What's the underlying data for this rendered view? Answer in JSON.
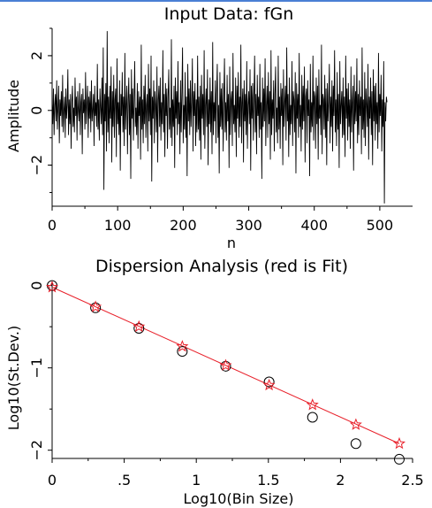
{
  "chart_data": [
    {
      "type": "line",
      "title": "Input Data: fGn",
      "xlabel": "n",
      "ylabel": "Amplitude",
      "xlim": [
        0,
        550
      ],
      "ylim": [
        -3.5,
        3.0
      ],
      "xticks": [
        "0",
        "100",
        "200",
        "300",
        "400",
        "500"
      ],
      "yticks": [
        "2",
        "0",
        "−2"
      ],
      "n_points": 512,
      "series": [
        {
          "color": "#000000",
          "values": [
            0.3,
            -0.5,
            0.8,
            -0.9,
            0.2,
            0.6,
            -0.4,
            1.1,
            -0.7,
            0.1,
            0.9,
            -1.2,
            0.4,
            -0.2,
            0.7,
            -0.6,
            1.3,
            -0.8,
            0.0,
            0.5,
            -1.0,
            0.8,
            -0.3,
            0.2,
            1.5,
            -0.9,
            0.4,
            -0.5,
            0.6,
            -1.4,
            0.3,
            0.9,
            -0.6,
            0.1,
            -0.8,
            1.2,
            -0.2,
            0.5,
            -1.1,
            0.7,
            0.0,
            -0.4,
            1.0,
            -0.9,
            0.3,
            0.6,
            -1.6,
            0.8,
            -0.1,
            0.4,
            -0.7,
            1.4,
            -0.5,
            0.2,
            0.9,
            -1.0,
            0.5,
            -0.3,
            0.7,
            -0.8,
            1.1,
            -0.4,
            0.0,
            0.6,
            -1.3,
            0.9,
            -0.2,
            0.3,
            -0.6,
            1.7,
            -0.7,
            0.4,
            -1.1,
            0.8,
            0.1,
            -0.5,
            1.2,
            -0.9,
            2.3,
            -2.9,
            0.6,
            -0.4,
            1.0,
            -1.5,
            2.9,
            -0.8,
            0.5,
            -1.2,
            0.9,
            -0.3,
            1.6,
            -1.9,
            0.7,
            -0.6,
            1.3,
            -1.0,
            0.4,
            0.8,
            -1.7,
            1.9,
            -0.5,
            0.3,
            -0.9,
            1.1,
            -2.2,
            0.6,
            -0.2,
            1.4,
            -0.8,
            0.5,
            -1.3,
            2.1,
            -0.7,
            0.2,
            0.9,
            -1.6,
            0.4,
            1.2,
            -0.9,
            0.6,
            -2.5,
            1.5,
            -0.3,
            0.8,
            -1.1,
            0.3,
            1.8,
            -0.6,
            0.1,
            -0.9,
            1.0,
            -1.4,
            0.7,
            -0.2,
            0.5,
            -1.8,
            2.4,
            -0.7,
            0.4,
            -1.2,
            0.9,
            -0.5,
            1.3,
            -1.0,
            0.2,
            0.6,
            -1.5,
            1.7,
            -0.4,
            0.8,
            -0.9,
            2.0,
            -2.6,
            0.5,
            -0.3,
            1.1,
            -1.2,
            0.7,
            0.2,
            -0.8,
            1.6,
            -1.9,
            0.4,
            0.9,
            -0.6,
            1.2,
            -1.1,
            0.3,
            -0.5,
            2.2,
            -0.8,
            0.6,
            -1.7,
            1.0,
            -0.2,
            0.8,
            -1.4,
            0.5,
            1.5,
            -0.7,
            0.1,
            -1.0,
            2.6,
            -1.3,
            0.4,
            -0.6,
            0.9,
            -2.1,
            1.2,
            -0.3,
            0.7,
            -0.9,
            1.8,
            -0.5,
            0.3,
            -1.6,
            1.1,
            -0.8,
            0.6,
            2.3,
            -1.2,
            0.2,
            -0.7,
            1.4,
            -1.0,
            0.5,
            -2.4,
            1.7,
            -0.4,
            0.8,
            -0.9,
            1.1,
            -0.6,
            0.3,
            1.9,
            -1.5,
            0.7,
            -0.2,
            1.0,
            -1.3,
            0.4,
            -0.8,
            2.0,
            -0.7,
            0.5,
            -1.1,
            0.9,
            -1.8,
            1.3,
            -0.3,
            0.6,
            -0.9,
            2.2,
            -1.4,
            0.2,
            0.8,
            -0.6,
            1.5,
            -2.0,
            0.4,
            -0.5,
            1.2,
            -0.8,
            0.7,
            -1.6,
            2.5,
            -0.9,
            0.3,
            -0.4,
            1.1,
            -1.2,
            0.6,
            1.7,
            -1.0,
            0.2,
            -2.3,
            1.4,
            -0.6,
            0.8,
            -0.7,
            1.0,
            -1.5,
            0.5,
            1.9,
            -0.8,
            0.3,
            -1.1,
            1.3,
            -0.4,
            0.6,
            -2.1,
            1.6,
            -0.9,
            0.4,
            0.7,
            -1.3,
            2.1,
            -0.5,
            0.2,
            -0.8,
            1.2,
            -1.7,
            0.9,
            -0.3,
            1.4,
            -1.0,
            0.5,
            -0.6,
            2.4,
            -1.2,
            0.3,
            0.8,
            -1.9,
            1.1,
            -0.4,
            0.6,
            -0.9,
            1.8,
            -1.4,
            0.2,
            0.7,
            -0.5,
            1.5,
            -2.2,
            0.9,
            -0.3,
            1.0,
            -1.1,
            0.4,
            2.0,
            -0.8,
            0.6,
            -1.6,
            1.3,
            -0.2,
            0.5,
            -1.0,
            1.7,
            -0.7,
            0.3,
            -2.5,
            1.2,
            -0.6,
            0.8,
            -0.4,
            1.9,
            -1.3,
            0.2,
            0.9,
            -1.0,
            1.4,
            -0.5,
            0.7,
            -1.8,
            2.2,
            -0.9,
            0.4,
            -0.3,
            1.1,
            -1.5,
            0.6,
            1.6,
            -0.8,
            0.1,
            -1.2,
            2.0,
            -0.7,
            0.5,
            -1.4,
            1.0,
            -0.2,
            0.8,
            -2.0,
            1.5,
            -0.6,
            0.3,
            0.9,
            -1.1,
            2.3,
            -0.4,
            0.6,
            -1.7,
            1.2,
            -0.9,
            0.2,
            -0.5,
            1.8,
            -1.3,
            0.7,
            0.4,
            -0.8,
            1.4,
            -2.3,
            1.0,
            -0.3,
            0.6,
            -1.0,
            2.1,
            -0.6,
            0.2,
            -1.5,
            1.3,
            -0.7,
            0.9,
            -0.4,
            1.6,
            -1.9,
            0.5,
            0.8,
            -1.2,
            1.1,
            -0.2,
            0.4,
            -2.4,
            1.7,
            -0.8,
            0.3,
            -0.6,
            2.0,
            -1.1,
            0.7,
            0.5,
            -1.4,
            1.2,
            -0.5,
            0.9,
            -1.8,
            1.5,
            -0.3,
            0.2,
            -0.9,
            2.4,
            -1.6,
            0.6,
            0.4,
            -0.7,
            1.3,
            -1.0,
            0.8,
            -2.0,
            1.0,
            -0.4,
            0.3,
            1.7,
            -1.2,
            0.5,
            -0.6,
            1.1,
            -1.5,
            0.9,
            -0.2,
            2.2,
            -0.8,
            0.4,
            -1.3,
            1.4,
            -0.7,
            0.6,
            -2.1,
            1.8,
            -0.5,
            0.2,
            0.7,
            -1.0,
            1.2,
            -0.9,
            0.5,
            -1.7,
            2.0,
            -0.3,
            0.8,
            -1.1,
            1.0,
            -0.6,
            0.4,
            -1.4,
            1.6,
            -0.8,
            0.3,
            0.9,
            -2.2,
            1.3,
            -0.5,
            0.7,
            -0.4,
            1.9,
            -1.2,
            0.6,
            -0.9,
            1.1,
            -0.2,
            0.5,
            -1.6,
            2.3,
            -0.7,
            0.4,
            -1.0,
            1.4,
            -1.3,
            0.8,
            0.2,
            -0.6,
            1.7,
            -1.8,
            0.5,
            -0.3,
            1.2,
            -0.9,
            0.7,
            -2.0,
            1.5,
            -0.4,
            0.9,
            -1.1,
            1.0,
            -0.5,
            0.3,
            -1.4,
            2.1,
            -0.8,
            0.6,
            -0.2,
            1.3,
            -1.5,
            0.4,
            -0.6,
            1.8,
            -3.4,
            0.3,
            -0.4,
            0.5
          ]
        }
      ]
    },
    {
      "type": "scatter",
      "title": "Dispersion Analysis (red is Fit)",
      "xlabel": "Log10(Bin Size)",
      "ylabel": "Log10(St.Dev.)",
      "xlim": [
        0,
        2.5
      ],
      "ylim": [
        -2.1,
        0.05
      ],
      "xticks": [
        "0",
        ".5",
        "1",
        "1.5",
        "2",
        "2.5"
      ],
      "yticks": [
        "0",
        "−1",
        "−2"
      ],
      "series": [
        {
          "marker": "circle",
          "color": "#000000",
          "points": [
            [
              0.0,
              0.0
            ],
            [
              0.301,
              -0.27
            ],
            [
              0.602,
              -0.52
            ],
            [
              0.903,
              -0.8
            ],
            [
              1.204,
              -0.98
            ],
            [
              1.505,
              -1.17
            ],
            [
              1.806,
              -1.6
            ],
            [
              2.107,
              -1.92
            ],
            [
              2.408,
              -2.11
            ]
          ]
        },
        {
          "marker": "star",
          "color": "#e8202a",
          "points": [
            [
              0.0,
              -0.02
            ],
            [
              0.301,
              -0.26
            ],
            [
              0.602,
              -0.5
            ],
            [
              0.903,
              -0.74
            ],
            [
              1.204,
              -0.97
            ],
            [
              1.505,
              -1.21
            ],
            [
              1.806,
              -1.45
            ],
            [
              2.107,
              -1.69
            ],
            [
              2.408,
              -1.92
            ]
          ]
        },
        {
          "type": "line",
          "color": "#e8202a",
          "points": [
            [
              0.0,
              -0.02
            ],
            [
              2.408,
              -1.92
            ]
          ]
        }
      ]
    }
  ]
}
